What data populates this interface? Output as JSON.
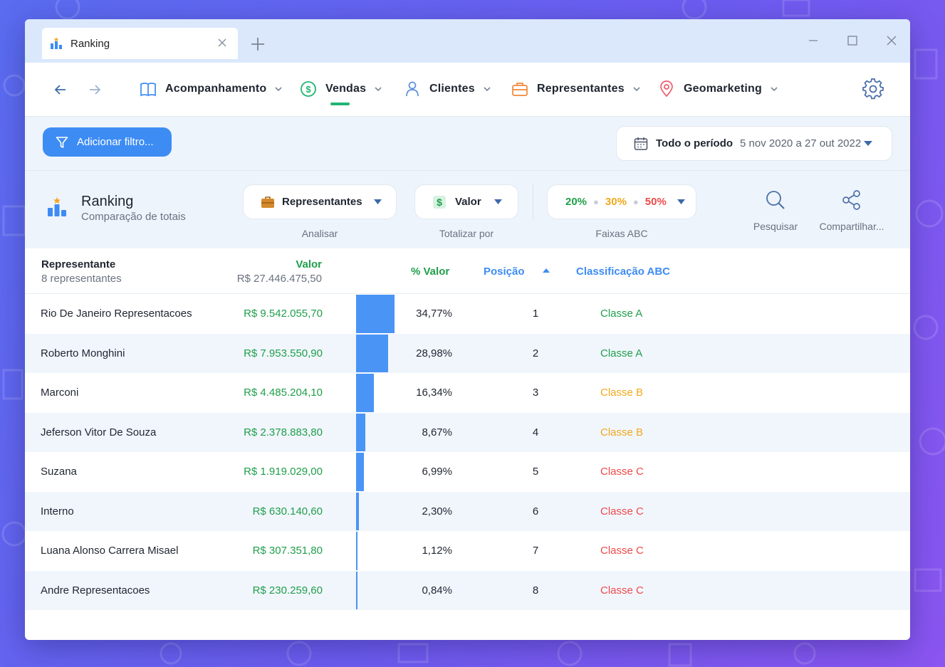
{
  "tab": {
    "title": "Ranking"
  },
  "nav": {
    "items": [
      {
        "label": "Acompanhamento"
      },
      {
        "label": "Vendas"
      },
      {
        "label": "Clientes"
      },
      {
        "label": "Representantes"
      },
      {
        "label": "Geomarketing"
      }
    ],
    "active": "Vendas"
  },
  "filter": {
    "add_label": "Adicionar filtro...",
    "period_label": "Todo o período",
    "period_range": "5 nov 2020 a 27 out 2022"
  },
  "report": {
    "title": "Ranking",
    "subtitle": "Comparação de totais",
    "analisar": {
      "value": "Representantes",
      "caption": "Analisar"
    },
    "totalizar": {
      "value": "Valor",
      "caption": "Totalizar por"
    },
    "faixas": {
      "a": "20%",
      "b": "30%",
      "c": "50%",
      "caption": "Faixas ABC"
    },
    "actions": {
      "search": "Pesquisar",
      "share": "Compartilhar..."
    }
  },
  "table": {
    "headers": {
      "rep": "Representante",
      "rep_count": "8 representantes",
      "valor": "Valor",
      "total": "R$ 27.446.475,50",
      "pct": "% Valor",
      "pos": "Posição",
      "abc": "Classificação ABC"
    },
    "rows": [
      {
        "name": "Rio De Janeiro Representacoes",
        "valor": "R$ 9.542.055,70",
        "pct": "34,77%",
        "share": 34.77,
        "pos": "1",
        "abc": "Classe A"
      },
      {
        "name": "Roberto Monghini",
        "valor": "R$ 7.953.550,90",
        "pct": "28,98%",
        "share": 28.98,
        "pos": "2",
        "abc": "Classe A"
      },
      {
        "name": "Marconi",
        "valor": "R$ 4.485.204,10",
        "pct": "16,34%",
        "share": 16.34,
        "pos": "3",
        "abc": "Classe B"
      },
      {
        "name": "Jeferson Vitor De Souza",
        "valor": "R$ 2.378.883,80",
        "pct": "8,67%",
        "share": 8.67,
        "pos": "4",
        "abc": "Classe B"
      },
      {
        "name": "Suzana",
        "valor": "R$ 1.919.029,00",
        "pct": "6,99%",
        "share": 6.99,
        "pos": "5",
        "abc": "Classe C"
      },
      {
        "name": "Interno",
        "valor": "R$ 630.140,60",
        "pct": "2,30%",
        "share": 2.3,
        "pos": "6",
        "abc": "Classe C"
      },
      {
        "name": "Luana Alonso Carrera Misael",
        "valor": "R$ 307.351,80",
        "pct": "1,12%",
        "share": 1.12,
        "pos": "7",
        "abc": "Classe C"
      },
      {
        "name": "Andre Representacoes",
        "valor": "R$ 230.259,60",
        "pct": "0,84%",
        "share": 0.84,
        "pos": "8",
        "abc": "Classe C"
      }
    ]
  },
  "colors": {
    "accent": "#3d8cf4",
    "green": "#1f9e4a",
    "classe_a": "#1f9e4a",
    "classe_b": "#f0a81c",
    "classe_c": "#ee4a4a",
    "bar": "#4a94f6"
  }
}
